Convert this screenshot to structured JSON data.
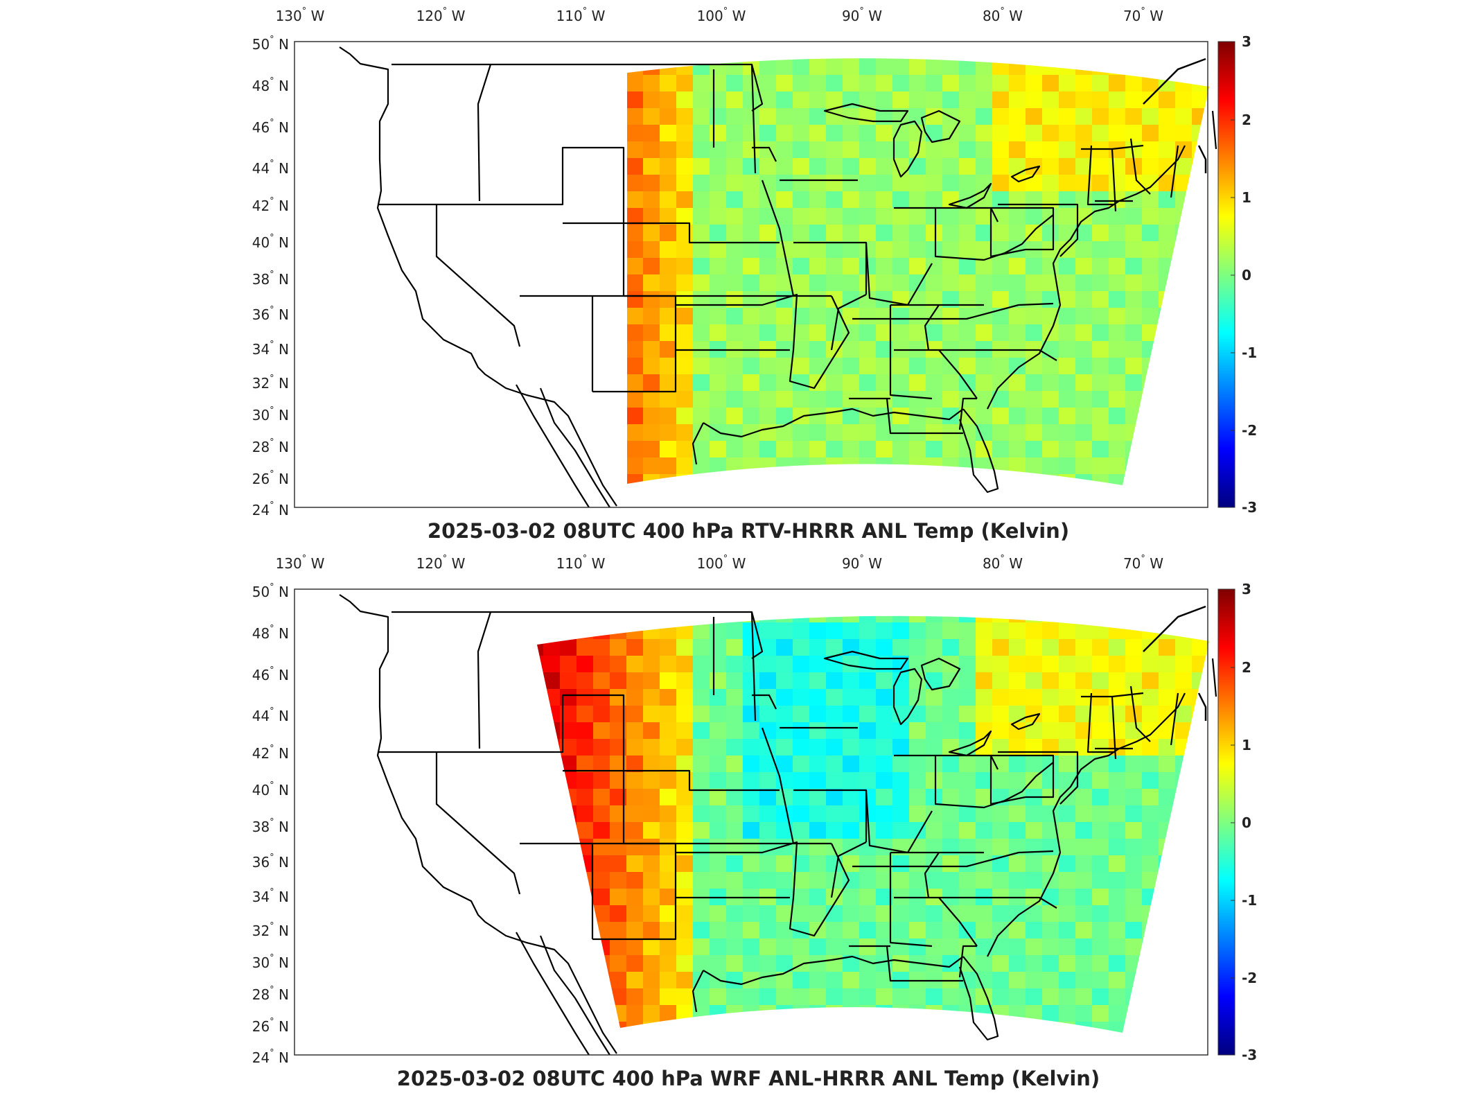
{
  "panels": [
    {
      "title": "2025-03-02 08UTC 400 hPa RTV-HRRR ANL Temp (Kelvin)",
      "field_pattern": "rtv"
    },
    {
      "title": "2025-03-02 08UTC 400 hPa WRF ANL-HRRR ANL Temp (Kelvin)",
      "field_pattern": "wrf"
    }
  ],
  "lon_labels": [
    {
      "deg": "130",
      "hem": "W"
    },
    {
      "deg": "120",
      "hem": "W"
    },
    {
      "deg": "110",
      "hem": "W"
    },
    {
      "deg": "100",
      "hem": "W"
    },
    {
      "deg": "90",
      "hem": "W"
    },
    {
      "deg": "80",
      "hem": "W"
    },
    {
      "deg": "70",
      "hem": "W"
    }
  ],
  "lat_labels": [
    {
      "deg": "50",
      "hem": "N"
    },
    {
      "deg": "48",
      "hem": "N"
    },
    {
      "deg": "46",
      "hem": "N"
    },
    {
      "deg": "44",
      "hem": "N"
    },
    {
      "deg": "42",
      "hem": "N"
    },
    {
      "deg": "40",
      "hem": "N"
    },
    {
      "deg": "38",
      "hem": "N"
    },
    {
      "deg": "36",
      "hem": "N"
    },
    {
      "deg": "34",
      "hem": "N"
    },
    {
      "deg": "32",
      "hem": "N"
    },
    {
      "deg": "30",
      "hem": "N"
    },
    {
      "deg": "28",
      "hem": "N"
    },
    {
      "deg": "26",
      "hem": "N"
    },
    {
      "deg": "24",
      "hem": "N"
    }
  ],
  "colorbar": {
    "ticks": [
      "3",
      "2",
      "1",
      "0",
      "-1",
      "-2",
      "-3"
    ],
    "colormap": [
      "#00007f",
      "#0000ff",
      "#007fff",
      "#00ffff",
      "#7fff7f",
      "#ffff00",
      "#ff7f00",
      "#ff0000",
      "#7f0000"
    ]
  }
}
